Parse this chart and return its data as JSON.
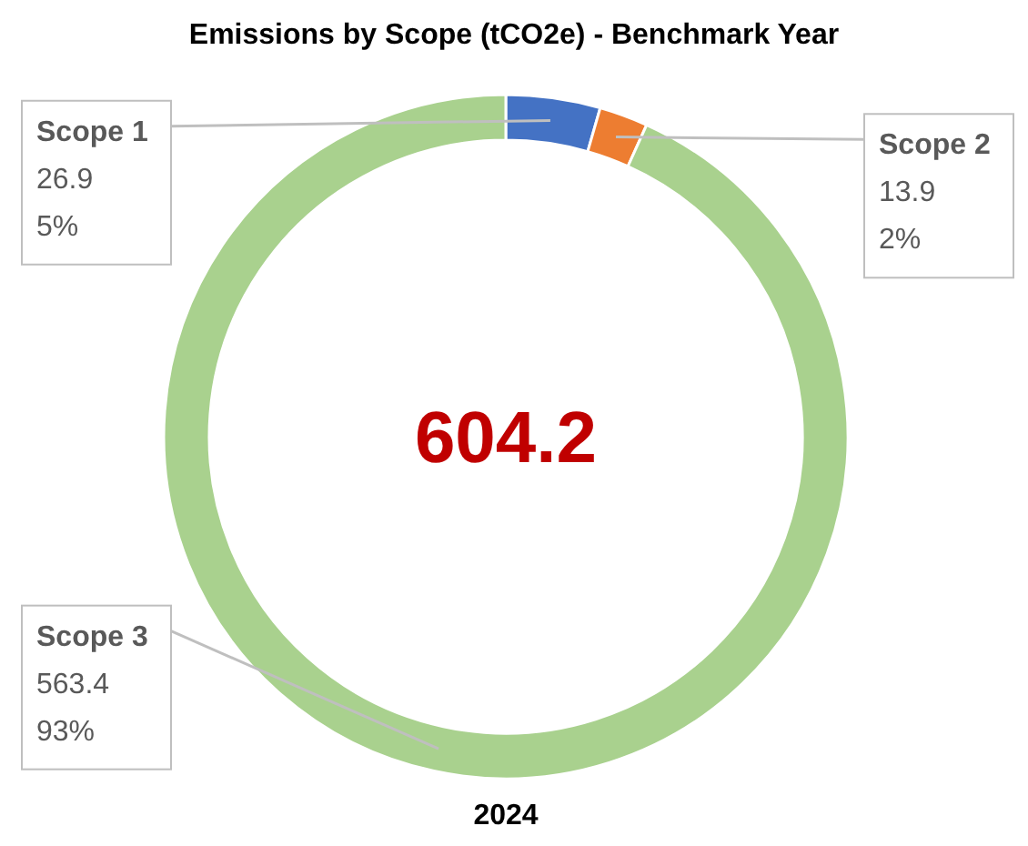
{
  "chart_data": {
    "type": "donut",
    "title": "Emissions by Scope (tCO2e) - Benchmark Year",
    "xlabel": "2024",
    "categories": [
      "Scope 1",
      "Scope 2",
      "Scope 3"
    ],
    "values": [
      26.9,
      13.9,
      563.4
    ],
    "colors": [
      "#4472c4",
      "#ed7d31",
      "#a9d18e"
    ],
    "value_labels": [
      "26.9\n5%",
      "13.9\n2%",
      "563.4\n93%"
    ],
    "annotations": [
      "604.2"
    ]
  }
}
